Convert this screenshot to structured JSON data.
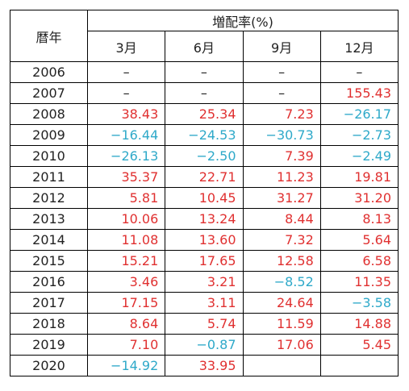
{
  "header": {
    "year_label": "暦年",
    "group_label": "増配率(%)",
    "quarters": [
      "3月",
      "6月",
      "9月",
      "12月"
    ]
  },
  "rows": [
    {
      "year": "2006",
      "values": [
        "–",
        "–",
        "–",
        "–"
      ]
    },
    {
      "year": "2007",
      "values": [
        "–",
        "–",
        "–",
        "155.43"
      ]
    },
    {
      "year": "2008",
      "values": [
        "38.43",
        "25.34",
        "7.23",
        "−26.17"
      ]
    },
    {
      "year": "2009",
      "values": [
        "−16.44",
        "−24.53",
        "−30.73",
        "−2.73"
      ]
    },
    {
      "year": "2010",
      "values": [
        "−26.13",
        "−2.50",
        "7.39",
        "−2.49"
      ]
    },
    {
      "year": "2011",
      "values": [
        "35.37",
        "22.71",
        "11.23",
        "19.81"
      ]
    },
    {
      "year": "2012",
      "values": [
        "5.81",
        "10.45",
        "31.27",
        "31.20"
      ]
    },
    {
      "year": "2013",
      "values": [
        "10.06",
        "13.24",
        "8.44",
        "8.13"
      ]
    },
    {
      "year": "2014",
      "values": [
        "11.08",
        "13.60",
        "7.32",
        "5.64"
      ]
    },
    {
      "year": "2015",
      "values": [
        "15.21",
        "17.65",
        "12.58",
        "6.58"
      ]
    },
    {
      "year": "2016",
      "values": [
        "3.46",
        "3.21",
        "−8.52",
        "11.35"
      ]
    },
    {
      "year": "2017",
      "values": [
        "17.15",
        "3.11",
        "24.64",
        "−3.58"
      ]
    },
    {
      "year": "2018",
      "values": [
        "8.64",
        "5.74",
        "11.59",
        "14.88"
      ]
    },
    {
      "year": "2019",
      "values": [
        "7.10",
        "−0.87",
        "17.06",
        "5.45"
      ]
    },
    {
      "year": "2020",
      "values": [
        "−14.92",
        "33.95",
        "",
        ""
      ]
    }
  ],
  "colors": {
    "positive": "#e03030",
    "negative": "#2ea9c9"
  }
}
